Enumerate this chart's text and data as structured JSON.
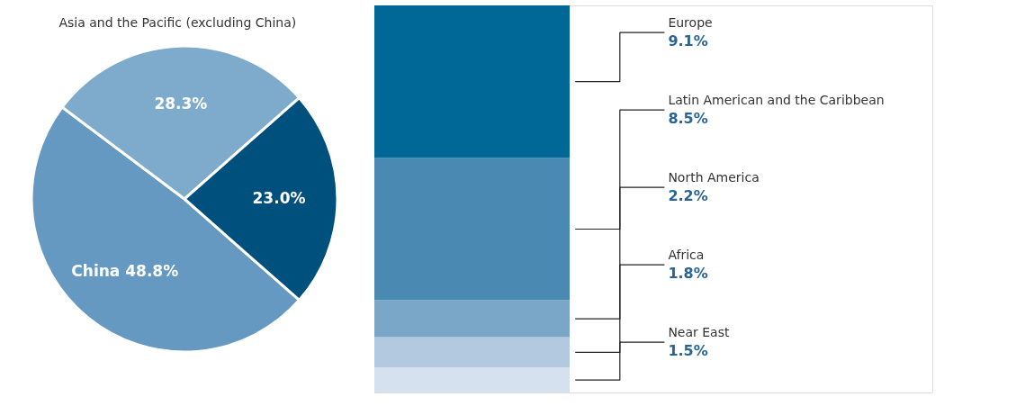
{
  "chart_data": [
    {
      "type": "pie",
      "categories": [
        "China",
        "Asia and the Pacific (excluding China)",
        null
      ],
      "values": [
        48.8,
        28.3,
        23.0
      ],
      "value_labels": [
        "48.8%",
        "28.3%",
        "23.0%"
      ],
      "colors": [
        "#6699c2",
        "#7eaacb",
        "#00507d"
      ],
      "legend": false
    },
    {
      "type": "bar",
      "stacked": true,
      "categories": [
        null
      ],
      "legend": false,
      "series": [
        {
          "name": "Near East",
          "color": "#d5e1ee",
          "values": [
            1.5
          ],
          "value_labels": [
            "1.5%"
          ]
        },
        {
          "name": "Africa",
          "color": "#b3c9df",
          "values": [
            1.8
          ],
          "value_labels": [
            "1.8%"
          ]
        },
        {
          "name": "North America",
          "color": "#7aa6c8",
          "values": [
            2.2
          ],
          "value_labels": [
            "2.2%"
          ]
        },
        {
          "name": "Latin American and the Caribbean",
          "color": "#4a89b2",
          "values": [
            8.5
          ],
          "value_labels": [
            "8.5%"
          ]
        },
        {
          "name": "Europe",
          "color": "#006896",
          "values": [
            9.1
          ],
          "value_labels": [
            "9.1%"
          ]
        }
      ]
    }
  ]
}
